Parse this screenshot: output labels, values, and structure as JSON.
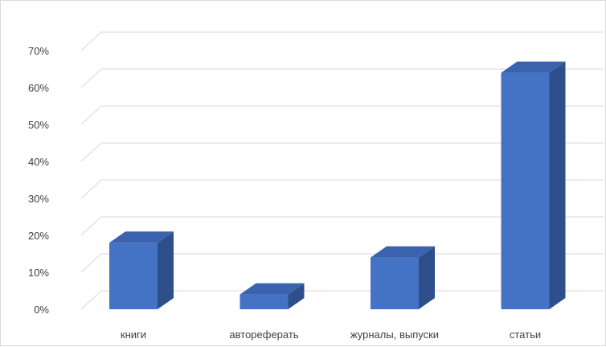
{
  "chart_data": {
    "type": "bar",
    "style": "3d-column",
    "categories": [
      "книги",
      "автореферать",
      "журналы, выпуски",
      "статьи"
    ],
    "values": [
      18,
      4,
      14,
      64
    ],
    "value_unit": "%",
    "ylim": [
      0,
      70
    ],
    "ytick_labels": [
      "0%",
      "10%",
      "20%",
      "30%",
      "40%",
      "50%",
      "60%",
      "70%"
    ],
    "title": "",
    "xlabel": "",
    "ylabel": "",
    "grid": true,
    "legend": "none",
    "colors": {
      "bar_front": "#4472c4",
      "bar_side": "#2e4f8c",
      "bar_top": "#3a62ad",
      "grid": "#d9d9d9",
      "text": "#404040"
    }
  }
}
